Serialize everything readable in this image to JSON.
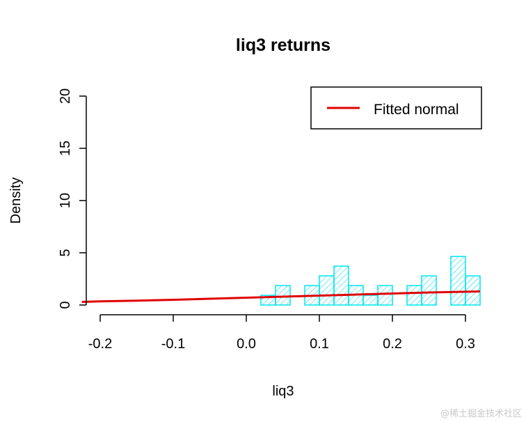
{
  "chart_data": {
    "type": "bar",
    "title": "liq3 returns",
    "xlabel": "liq3",
    "ylabel": "Density",
    "xlim": [
      -0.225,
      0.32
    ],
    "ylim": [
      0,
      20
    ],
    "x_ticks": [
      "-0.2",
      "-0.1",
      "0.0",
      "0.1",
      "0.2",
      "0.3"
    ],
    "x_tick_values": [
      -0.2,
      -0.1,
      0.0,
      0.1,
      0.2,
      0.3
    ],
    "y_ticks": [
      "0",
      "5",
      "10",
      "15",
      "20"
    ],
    "y_tick_values": [
      0,
      5,
      10,
      15,
      20
    ],
    "histogram": {
      "bin_edges": [
        0.02,
        0.04,
        0.06,
        0.08,
        0.1,
        0.12,
        0.14,
        0.16,
        0.18,
        0.2,
        0.22,
        0.24,
        0.26,
        0.28,
        0.3,
        0.32
      ],
      "density": [
        0.93,
        1.86,
        0,
        1.86,
        2.79,
        3.72,
        1.86,
        0.93,
        1.86,
        0,
        1.86,
        2.79,
        0,
        4.65,
        2.79
      ],
      "color": "#00e5ee"
    },
    "fitted_normal": {
      "name": "Fitted normal",
      "color": "#e00000",
      "x": [
        -0.225,
        -0.2,
        -0.15,
        -0.1,
        -0.05,
        0,
        0.05,
        0.1,
        0.15,
        0.2,
        0.25,
        0.32
      ],
      "y": [
        0.3,
        0.35,
        0.42,
        0.5,
        0.6,
        0.7,
        0.8,
        0.9,
        1.0,
        1.1,
        1.2,
        1.3
      ]
    },
    "legend": {
      "placement": "top-right",
      "entries": [
        "Fitted normal"
      ]
    }
  },
  "watermark": "@稀土掘金技术社区"
}
